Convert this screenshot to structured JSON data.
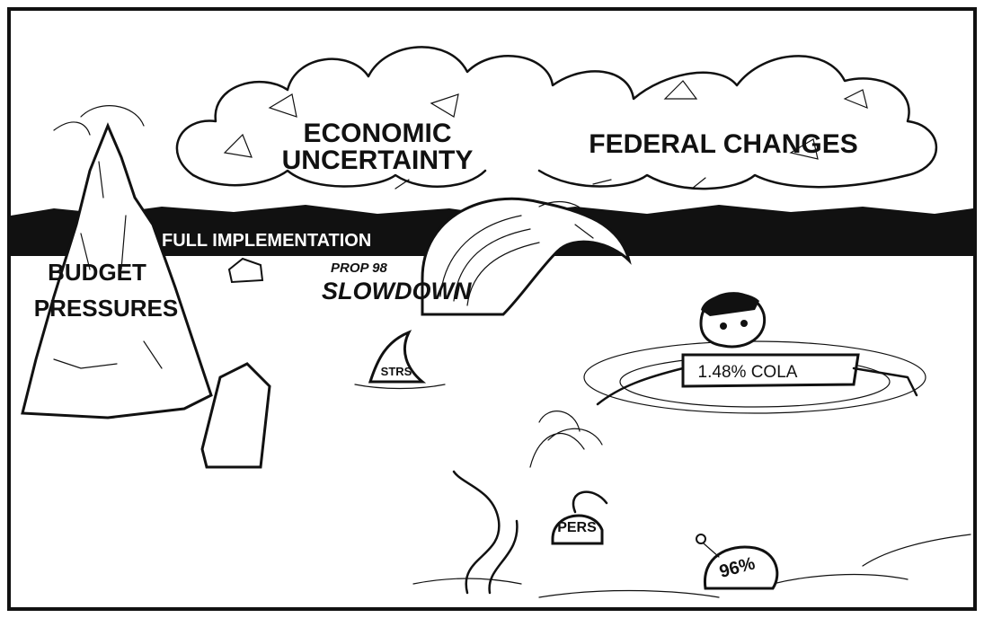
{
  "cartoon": {
    "clouds": {
      "left": [
        "ECONOMIC",
        "UNCERTAINTY"
      ],
      "right": "FEDERAL CHANGES"
    },
    "horizon": "FULL IMPLEMENTATION",
    "wave": {
      "top": "PROP 98",
      "main": "SLOWDOWN"
    },
    "iceberg": [
      "BUDGET",
      "PRESSURES"
    ],
    "shark": "STRS",
    "raft": "1.48% COLA",
    "octopus": "PERS",
    "buoy": "96%"
  }
}
